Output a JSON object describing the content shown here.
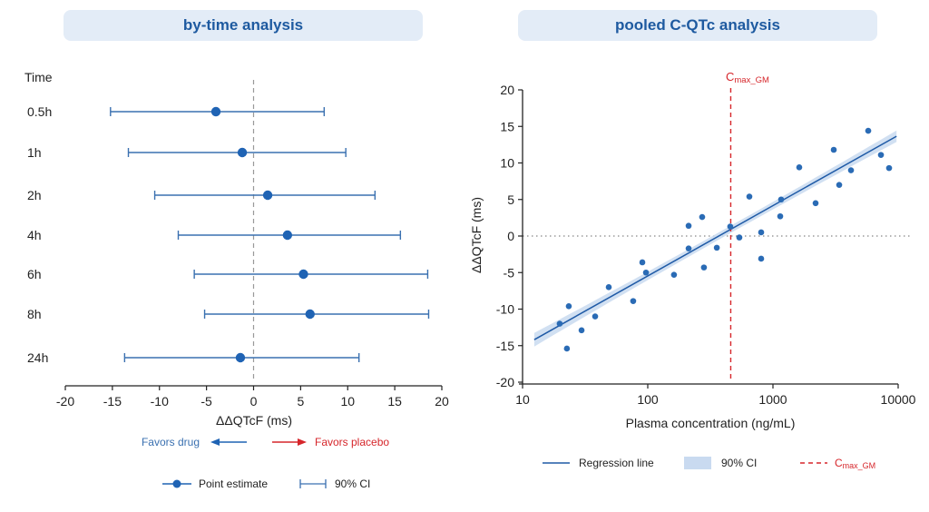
{
  "colors": {
    "primary_blue": "#1f63b4",
    "line_blue": "#3a70b0",
    "ci_band": "#c9daf0",
    "red": "#d6262b",
    "banner_bg": "#e3ecf7",
    "banner_text": "#1e5aa0",
    "zero_line": "#999999"
  },
  "chart_data": [
    {
      "type": "forest",
      "title": "by-time analysis",
      "row_header": "Time",
      "xlabel": "ΔΔQTcF (ms)",
      "xlim": [
        -20,
        20
      ],
      "xticks": [
        -20,
        -15,
        -10,
        -5,
        0,
        5,
        10,
        15,
        20
      ],
      "reference_line": 0,
      "rows": [
        {
          "label": "0.5h",
          "estimate": -4.0,
          "ci_low": -15.2,
          "ci_high": 7.5
        },
        {
          "label": "1h",
          "estimate": -1.2,
          "ci_low": -13.3,
          "ci_high": 9.8
        },
        {
          "label": "2h",
          "estimate": 1.5,
          "ci_low": -10.5,
          "ci_high": 12.9
        },
        {
          "label": "4h",
          "estimate": 3.6,
          "ci_low": -8.0,
          "ci_high": 15.6
        },
        {
          "label": "6h",
          "estimate": 5.3,
          "ci_low": -6.3,
          "ci_high": 18.5
        },
        {
          "label": "8h",
          "estimate": 6.0,
          "ci_low": -5.2,
          "ci_high": 18.6
        },
        {
          "label": "24h",
          "estimate": -1.4,
          "ci_low": -13.7,
          "ci_high": 11.2
        }
      ],
      "direction_labels": {
        "left": "Favors drug",
        "right": "Favors placebo"
      },
      "legend": [
        {
          "label": "Point estimate",
          "symbol": "dot-line"
        },
        {
          "label": "90% CI",
          "symbol": "errorbar"
        }
      ]
    },
    {
      "type": "scatter",
      "title": "pooled C-QTc analysis",
      "xlabel": "Plasma concentration (ng/mL)",
      "ylabel": "ΔΔQTcF (ms)",
      "xscale": "log",
      "xlim": [
        10,
        10000
      ],
      "ylim": [
        -20,
        20
      ],
      "xticks": [
        10,
        100,
        1000,
        10000
      ],
      "xtick_labels": [
        "10",
        "100",
        "1000",
        "10000"
      ],
      "yticks": [
        -20,
        -15,
        -10,
        -5,
        0,
        5,
        10,
        15,
        20
      ],
      "zero_line": 0,
      "cmax_gm": {
        "x": 460,
        "label_main": "C",
        "label_sub": "max_GM"
      },
      "regression": {
        "x_start": 12.4,
        "x_end": 9700,
        "slope_per_log10": 9.62,
        "intercept": -24.7,
        "ci_halfwidth_ms": 0.9
      },
      "points": [
        {
          "x": 19.8,
          "y": -12.0
        },
        {
          "x": 23.4,
          "y": -9.6
        },
        {
          "x": 22.6,
          "y": -15.4
        },
        {
          "x": 29.6,
          "y": -12.9
        },
        {
          "x": 38.0,
          "y": -11.0
        },
        {
          "x": 48.8,
          "y": -7.0
        },
        {
          "x": 76.5,
          "y": -8.9
        },
        {
          "x": 90.5,
          "y": -3.6
        },
        {
          "x": 96.8,
          "y": -5.0
        },
        {
          "x": 162,
          "y": -5.3
        },
        {
          "x": 212,
          "y": -1.7
        },
        {
          "x": 281,
          "y": -4.3
        },
        {
          "x": 356,
          "y": -1.6
        },
        {
          "x": 212,
          "y": 1.4
        },
        {
          "x": 272,
          "y": 2.6
        },
        {
          "x": 456,
          "y": 1.3
        },
        {
          "x": 539,
          "y": -0.2
        },
        {
          "x": 648,
          "y": 5.4
        },
        {
          "x": 805,
          "y": 0.5
        },
        {
          "x": 805,
          "y": -3.1
        },
        {
          "x": 1143,
          "y": 2.7
        },
        {
          "x": 1162,
          "y": 5.0
        },
        {
          "x": 1622,
          "y": 9.4
        },
        {
          "x": 2191,
          "y": 4.5
        },
        {
          "x": 3059,
          "y": 11.8
        },
        {
          "x": 3382,
          "y": 7.0
        },
        {
          "x": 4200,
          "y": 9.0
        },
        {
          "x": 5768,
          "y": 14.4
        },
        {
          "x": 7286,
          "y": 11.1
        },
        {
          "x": 8465,
          "y": 9.3
        }
      ],
      "legend": [
        {
          "label": "Regression line",
          "symbol": "line"
        },
        {
          "label": "90% CI",
          "symbol": "band"
        },
        {
          "label_main": "C",
          "label_sub": "max_GM",
          "symbol": "dashed-red"
        }
      ]
    }
  ]
}
